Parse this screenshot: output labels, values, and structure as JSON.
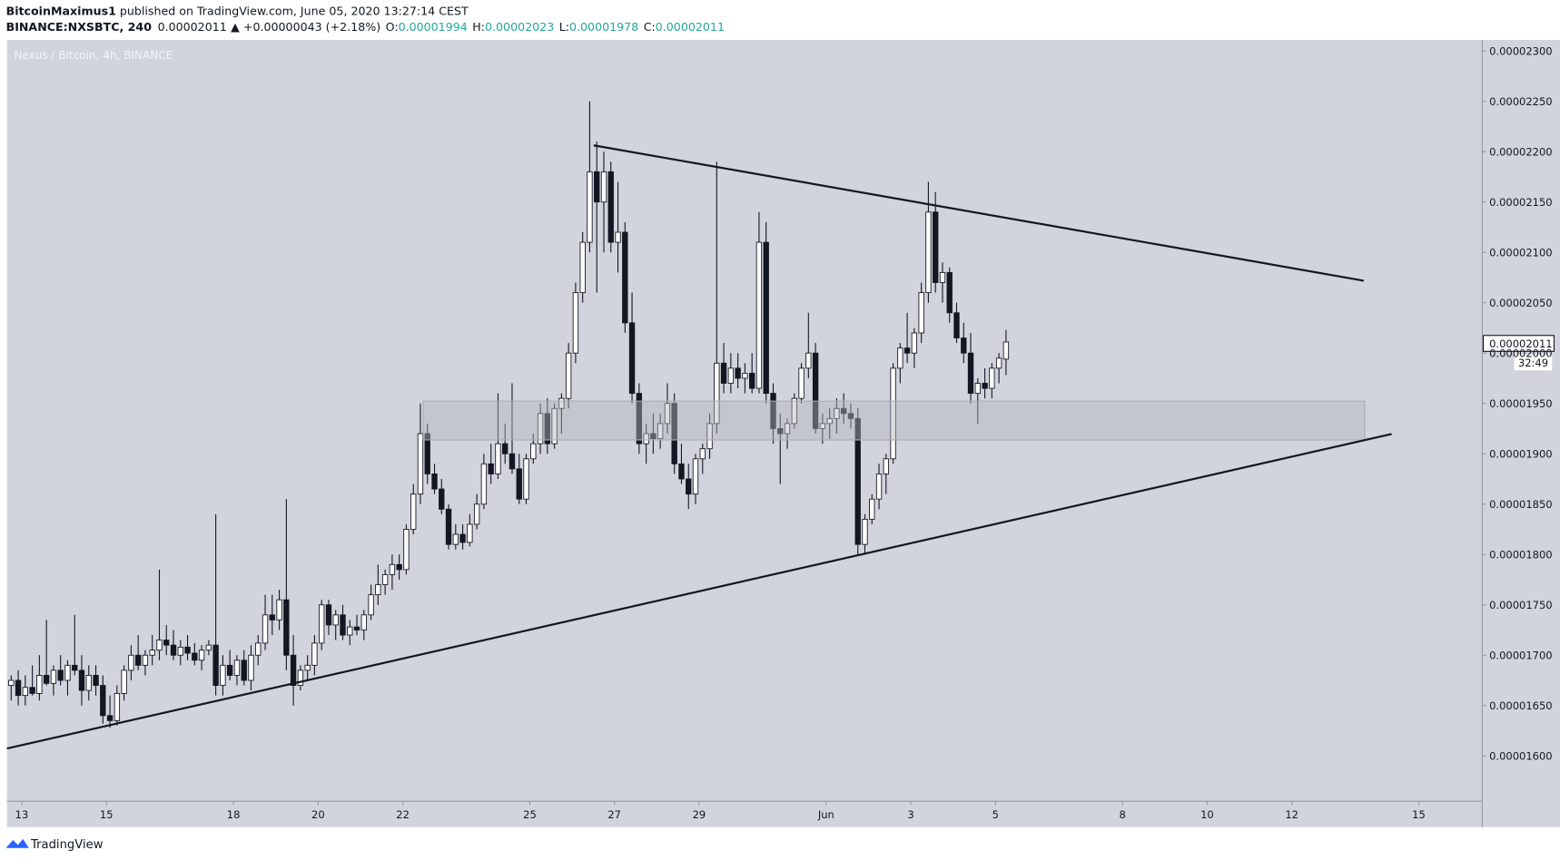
{
  "header": {
    "author": "BitcoinMaximus1",
    "published": " published on TradingView.com, June 05, 2020 13:27:14 CEST",
    "symbol": "BINANCE:NXSBTC, 240",
    "last": "0.00002011",
    "change": "▲ +0.00000043 (+2.18%)",
    "ohlc": [
      {
        "label": "O:",
        "value": "0.00001994"
      },
      {
        "label": "H:",
        "value": "0.00002023"
      },
      {
        "label": "L:",
        "value": "0.00001978"
      },
      {
        "label": "C:",
        "value": "0.00002011"
      }
    ]
  },
  "footer": {
    "brand": "TradingView"
  },
  "chart_data": {
    "type": "candlestick",
    "title": "Nexus / Bitcoin, 4h, BINANCE",
    "last_price_label": "0.00002011",
    "countdown": "32:49",
    "up_color": "#ffffff",
    "down_color": "#131722",
    "wick_color": "#131722",
    "background": "#d1d4dc",
    "grid": false,
    "xlim": [
      12.65,
      47.5
    ],
    "xticks": [
      13,
      15,
      18,
      20,
      22,
      25,
      27,
      29,
      {
        "value": 32,
        "label": "Jun"
      },
      {
        "value": 34,
        "label": "3"
      },
      {
        "value": 36,
        "label": "5"
      },
      {
        "value": 39,
        "label": "8"
      },
      {
        "value": 41,
        "label": "10"
      },
      {
        "value": 43,
        "label": "12"
      },
      {
        "value": 46,
        "label": "15"
      }
    ],
    "ylim": [
      1.555e-05,
      2.311e-05
    ],
    "yticks": [
      {
        "value": 1.6e-05,
        "label": "0.00001600"
      },
      {
        "value": 1.65e-05,
        "label": "0.00001650"
      },
      {
        "value": 1.7e-05,
        "label": "0.00001700"
      },
      {
        "value": 1.75e-05,
        "label": "0.00001750"
      },
      {
        "value": 1.8e-05,
        "label": "0.00001800"
      },
      {
        "value": 1.85e-05,
        "label": "0.00001850"
      },
      {
        "value": 1.9e-05,
        "label": "0.00001900"
      },
      {
        "value": 1.95e-05,
        "label": "0.00001950"
      },
      {
        "value": 2e-05,
        "label": "0.00002000"
      },
      {
        "value": 2.05e-05,
        "label": "0.00002050"
      },
      {
        "value": 2.1e-05,
        "label": "0.00002100"
      },
      {
        "value": 2.15e-05,
        "label": "0.00002150"
      },
      {
        "value": 2.2e-05,
        "label": "0.00002200"
      },
      {
        "value": 2.25e-05,
        "label": "0.00002250"
      },
      {
        "value": 2.3e-05,
        "label": "0.00002300"
      }
    ],
    "x": [
      12.667,
      12.833,
      13,
      13.167,
      13.333,
      13.5,
      13.667,
      13.833,
      14,
      14.167,
      14.333,
      14.5,
      14.667,
      14.833,
      15,
      15.167,
      15.333,
      15.5,
      15.667,
      15.833,
      16,
      16.167,
      16.333,
      16.5,
      16.667,
      16.833,
      17,
      17.167,
      17.333,
      17.5,
      17.667,
      17.833,
      18,
      18.167,
      18.333,
      18.5,
      18.667,
      18.833,
      19,
      19.167,
      19.333,
      19.5,
      19.667,
      19.833,
      20,
      20.167,
      20.333,
      20.5,
      20.667,
      20.833,
      21,
      21.167,
      21.333,
      21.5,
      21.667,
      21.833,
      22,
      22.167,
      22.333,
      22.5,
      22.667,
      22.833,
      23,
      23.167,
      23.333,
      23.5,
      23.667,
      23.833,
      24,
      24.167,
      24.333,
      24.5,
      24.667,
      24.833,
      25,
      25.167,
      25.333,
      25.5,
      25.667,
      25.833,
      26,
      26.167,
      26.333,
      26.5,
      26.667,
      26.833,
      27,
      27.167,
      27.333,
      27.5,
      27.667,
      27.833,
      28,
      28.167,
      28.333,
      28.5,
      28.667,
      28.833,
      29,
      29.167,
      29.333,
      29.5,
      29.667,
      29.833,
      30,
      30.167,
      30.333,
      30.5,
      30.667,
      30.833,
      31,
      31.167,
      31.333,
      31.5,
      31.667,
      31.833,
      32,
      32.167,
      32.333,
      32.5,
      32.667,
      32.833,
      33,
      33.167,
      33.333,
      33.5,
      33.667,
      33.833,
      34,
      34.167,
      34.333,
      34.5,
      34.667,
      34.833,
      35,
      35.167,
      35.333,
      35.5,
      35.667,
      35.833,
      36,
      36.167
    ],
    "candles": [
      [
        1.67e-05,
        1.68e-05,
        1.655e-05,
        1.675e-05
      ],
      [
        1.675e-05,
        1.685e-05,
        1.65e-05,
        1.66e-05
      ],
      [
        1.66e-05,
        1.68e-05,
        1.65e-05,
        1.668e-05
      ],
      [
        1.668e-05,
        1.69e-05,
        1.66e-05,
        1.662e-05
      ],
      [
        1.662e-05,
        1.7e-05,
        1.655e-05,
        1.68e-05
      ],
      [
        1.68e-05,
        1.735e-05,
        1.67e-05,
        1.672e-05
      ],
      [
        1.672e-05,
        1.69e-05,
        1.66e-05,
        1.685e-05
      ],
      [
        1.685e-05,
        1.7e-05,
        1.67e-05,
        1.675e-05
      ],
      [
        1.675e-05,
        1.695e-05,
        1.66e-05,
        1.69e-05
      ],
      [
        1.69e-05,
        1.74e-05,
        1.68e-05,
        1.685e-05
      ],
      [
        1.685e-05,
        1.7e-05,
        1.65e-05,
        1.665e-05
      ],
      [
        1.665e-05,
        1.69e-05,
        1.655e-05,
        1.68e-05
      ],
      [
        1.68e-05,
        1.69e-05,
        1.66e-05,
        1.67e-05
      ],
      [
        1.67e-05,
        1.68e-05,
        1.632e-05,
        1.64e-05
      ],
      [
        1.64e-05,
        1.66e-05,
        1.628e-05,
        1.635e-05
      ],
      [
        1.635e-05,
        1.67e-05,
        1.63e-05,
        1.662e-05
      ],
      [
        1.662e-05,
        1.69e-05,
        1.655e-05,
        1.685e-05
      ],
      [
        1.685e-05,
        1.71e-05,
        1.675e-05,
        1.7e-05
      ],
      [
        1.7e-05,
        1.72e-05,
        1.685e-05,
        1.69e-05
      ],
      [
        1.69e-05,
        1.705e-05,
        1.68e-05,
        1.7e-05
      ],
      [
        1.7e-05,
        1.72e-05,
        1.69e-05,
        1.705e-05
      ],
      [
        1.705e-05,
        1.785e-05,
        1.695e-05,
        1.715e-05
      ],
      [
        1.715e-05,
        1.73e-05,
        1.7e-05,
        1.71e-05
      ],
      [
        1.71e-05,
        1.725e-05,
        1.695e-05,
        1.7e-05
      ],
      [
        1.7e-05,
        1.715e-05,
        1.69e-05,
        1.708e-05
      ],
      [
        1.708e-05,
        1.72e-05,
        1.695e-05,
        1.702e-05
      ],
      [
        1.702e-05,
        1.712e-05,
        1.69e-05,
        1.695e-05
      ],
      [
        1.695e-05,
        1.71e-05,
        1.685e-05,
        1.705e-05
      ],
      [
        1.705e-05,
        1.715e-05,
        1.7e-05,
        1.71e-05
      ],
      [
        1.71e-05,
        1.84e-05,
        1.66e-05,
        1.67e-05
      ],
      [
        1.67e-05,
        1.7e-05,
        1.66e-05,
        1.69e-05
      ],
      [
        1.69e-05,
        1.705e-05,
        1.675e-05,
        1.68e-05
      ],
      [
        1.68e-05,
        1.7e-05,
        1.67e-05,
        1.695e-05
      ],
      [
        1.695e-05,
        1.705e-05,
        1.67e-05,
        1.675e-05
      ],
      [
        1.675e-05,
        1.71e-05,
        1.665e-05,
        1.7e-05
      ],
      [
        1.7e-05,
        1.72e-05,
        1.69e-05,
        1.712e-05
      ],
      [
        1.712e-05,
        1.76e-05,
        1.705e-05,
        1.74e-05
      ],
      [
        1.74e-05,
        1.76e-05,
        1.72e-05,
        1.735e-05
      ],
      [
        1.735e-05,
        1.765e-05,
        1.725e-05,
        1.755e-05
      ],
      [
        1.755e-05,
        1.855e-05,
        1.685e-05,
        1.7e-05
      ],
      [
        1.7e-05,
        1.72e-05,
        1.65e-05,
        1.67e-05
      ],
      [
        1.67e-05,
        1.69e-05,
        1.665e-05,
        1.685e-05
      ],
      [
        1.685e-05,
        1.7e-05,
        1.675e-05,
        1.69e-05
      ],
      [
        1.69e-05,
        1.72e-05,
        1.68e-05,
        1.712e-05
      ],
      [
        1.712e-05,
        1.755e-05,
        1.705e-05,
        1.75e-05
      ],
      [
        1.75e-05,
        1.755e-05,
        1.72e-05,
        1.73e-05
      ],
      [
        1.73e-05,
        1.745e-05,
        1.715e-05,
        1.74e-05
      ],
      [
        1.74e-05,
        1.75e-05,
        1.715e-05,
        1.72e-05
      ],
      [
        1.72e-05,
        1.735e-05,
        1.71e-05,
        1.728e-05
      ],
      [
        1.728e-05,
        1.74e-05,
        1.72e-05,
        1.725e-05
      ],
      [
        1.725e-05,
        1.745e-05,
        1.715e-05,
        1.74e-05
      ],
      [
        1.74e-05,
        1.77e-05,
        1.735e-05,
        1.76e-05
      ],
      [
        1.76e-05,
        1.79e-05,
        1.75e-05,
        1.77e-05
      ],
      [
        1.77e-05,
        1.785e-05,
        1.76e-05,
        1.78e-05
      ],
      [
        1.78e-05,
        1.8e-05,
        1.765e-05,
        1.79e-05
      ],
      [
        1.79e-05,
        1.8e-05,
        1.775e-05,
        1.785e-05
      ],
      [
        1.785e-05,
        1.83e-05,
        1.78e-05,
        1.825e-05
      ],
      [
        1.825e-05,
        1.87e-05,
        1.82e-05,
        1.86e-05
      ],
      [
        1.86e-05,
        1.95e-05,
        1.85e-05,
        1.92e-05
      ],
      [
        1.92e-05,
        1.93e-05,
        1.87e-05,
        1.88e-05
      ],
      [
        1.88e-05,
        1.89e-05,
        1.86e-05,
        1.865e-05
      ],
      [
        1.865e-05,
        1.875e-05,
        1.84e-05,
        1.845e-05
      ],
      [
        1.845e-05,
        1.85e-05,
        1.805e-05,
        1.81e-05
      ],
      [
        1.81e-05,
        1.83e-05,
        1.805e-05,
        1.82e-05
      ],
      [
        1.82e-05,
        1.83e-05,
        1.805e-05,
        1.812e-05
      ],
      [
        1.812e-05,
        1.84e-05,
        1.808e-05,
        1.83e-05
      ],
      [
        1.83e-05,
        1.86e-05,
        1.825e-05,
        1.85e-05
      ],
      [
        1.85e-05,
        1.9e-05,
        1.845e-05,
        1.89e-05
      ],
      [
        1.89e-05,
        1.91e-05,
        1.87e-05,
        1.88e-05
      ],
      [
        1.88e-05,
        1.96e-05,
        1.875e-05,
        1.91e-05
      ],
      [
        1.91e-05,
        1.93e-05,
        1.89e-05,
        1.9e-05
      ],
      [
        1.9e-05,
        1.97e-05,
        1.88e-05,
        1.885e-05
      ],
      [
        1.885e-05,
        1.9e-05,
        1.85e-05,
        1.855e-05
      ],
      [
        1.855e-05,
        1.9e-05,
        1.85e-05,
        1.895e-05
      ],
      [
        1.895e-05,
        1.92e-05,
        1.89e-05,
        1.91e-05
      ],
      [
        1.91e-05,
        1.95e-05,
        1.9e-05,
        1.94e-05
      ],
      [
        1.94e-05,
        1.955e-05,
        1.9e-05,
        1.91e-05
      ],
      [
        1.91e-05,
        1.95e-05,
        1.905e-05,
        1.945e-05
      ],
      [
        1.945e-05,
        1.96e-05,
        1.92e-05,
        1.955e-05
      ],
      [
        1.955e-05,
        2.01e-05,
        1.945e-05,
        2e-05
      ],
      [
        2e-05,
        2.07e-05,
        1.99e-05,
        2.06e-05
      ],
      [
        2.06e-05,
        2.12e-05,
        2.05e-05,
        2.11e-05
      ],
      [
        2.11e-05,
        2.25e-05,
        2.1e-05,
        2.18e-05
      ],
      [
        2.18e-05,
        2.21e-05,
        2.06e-05,
        2.15e-05
      ],
      [
        2.15e-05,
        2.2e-05,
        2.1e-05,
        2.18e-05
      ],
      [
        2.18e-05,
        2.19e-05,
        2.1e-05,
        2.11e-05
      ],
      [
        2.11e-05,
        2.17e-05,
        2.08e-05,
        2.12e-05
      ],
      [
        2.12e-05,
        2.13e-05,
        2.02e-05,
        2.03e-05
      ],
      [
        2.03e-05,
        2.06e-05,
        1.95e-05,
        1.96e-05
      ],
      [
        1.96e-05,
        1.97e-05,
        1.9e-05,
        1.91e-05
      ],
      [
        1.91e-05,
        1.93e-05,
        1.89e-05,
        1.92e-05
      ],
      [
        1.92e-05,
        1.94e-05,
        1.9e-05,
        1.915e-05
      ],
      [
        1.915e-05,
        1.94e-05,
        1.905e-05,
        1.93e-05
      ],
      [
        1.93e-05,
        1.97e-05,
        1.92e-05,
        1.95e-05
      ],
      [
        1.95e-05,
        1.96e-05,
        1.88e-05,
        1.89e-05
      ],
      [
        1.89e-05,
        1.91e-05,
        1.87e-05,
        1.875e-05
      ],
      [
        1.875e-05,
        1.89e-05,
        1.845e-05,
        1.86e-05
      ],
      [
        1.86e-05,
        1.9e-05,
        1.85e-05,
        1.895e-05
      ],
      [
        1.895e-05,
        1.91e-05,
        1.88e-05,
        1.905e-05
      ],
      [
        1.905e-05,
        1.94e-05,
        1.895e-05,
        1.93e-05
      ],
      [
        1.93e-05,
        2.19e-05,
        1.92e-05,
        1.99e-05
      ],
      [
        1.99e-05,
        2.01e-05,
        1.96e-05,
        1.97e-05
      ],
      [
        1.97e-05,
        2e-05,
        1.96e-05,
        1.985e-05
      ],
      [
        1.985e-05,
        2e-05,
        1.965e-05,
        1.975e-05
      ],
      [
        1.975e-05,
        1.99e-05,
        1.96e-05,
        1.98e-05
      ],
      [
        1.98e-05,
        2e-05,
        1.96e-05,
        1.965e-05
      ],
      [
        1.965e-05,
        2.14e-05,
        1.96e-05,
        2.11e-05
      ],
      [
        2.11e-05,
        2.13e-05,
        1.95e-05,
        1.96e-05
      ],
      [
        1.96e-05,
        1.97e-05,
        1.91e-05,
        1.925e-05
      ],
      [
        1.925e-05,
        1.94e-05,
        1.87e-05,
        1.92e-05
      ],
      [
        1.92e-05,
        1.935e-05,
        1.905e-05,
        1.93e-05
      ],
      [
        1.93e-05,
        1.96e-05,
        1.925e-05,
        1.955e-05
      ],
      [
        1.955e-05,
        1.99e-05,
        1.95e-05,
        1.985e-05
      ],
      [
        1.985e-05,
        2.04e-05,
        1.975e-05,
        2e-05
      ],
      [
        2e-05,
        2.01e-05,
        1.92e-05,
        1.925e-05
      ],
      [
        1.925e-05,
        1.94e-05,
        1.91e-05,
        1.93e-05
      ],
      [
        1.93e-05,
        1.945e-05,
        1.915e-05,
        1.935e-05
      ],
      [
        1.935e-05,
        1.955e-05,
        1.92e-05,
        1.945e-05
      ],
      [
        1.945e-05,
        1.96e-05,
        1.93e-05,
        1.94e-05
      ],
      [
        1.94e-05,
        1.95e-05,
        1.925e-05,
        1.935e-05
      ],
      [
        1.935e-05,
        1.945e-05,
        1.8e-05,
        1.81e-05
      ],
      [
        1.81e-05,
        1.84e-05,
        1.8e-05,
        1.835e-05
      ],
      [
        1.835e-05,
        1.86e-05,
        1.83e-05,
        1.855e-05
      ],
      [
        1.855e-05,
        1.89e-05,
        1.845e-05,
        1.88e-05
      ],
      [
        1.88e-05,
        1.9e-05,
        1.86e-05,
        1.895e-05
      ],
      [
        1.895e-05,
        1.99e-05,
        1.89e-05,
        1.985e-05
      ],
      [
        1.985e-05,
        2.01e-05,
        1.97e-05,
        2.005e-05
      ],
      [
        2.005e-05,
        2.04e-05,
        1.99e-05,
        2e-05
      ],
      [
        2e-05,
        2.025e-05,
        1.985e-05,
        2.02e-05
      ],
      [
        2.02e-05,
        2.07e-05,
        2.01e-05,
        2.06e-05
      ],
      [
        2.06e-05,
        2.17e-05,
        2.05e-05,
        2.14e-05
      ],
      [
        2.14e-05,
        2.16e-05,
        2.06e-05,
        2.07e-05
      ],
      [
        2.07e-05,
        2.09e-05,
        2.05e-05,
        2.08e-05
      ],
      [
        2.08e-05,
        2.085e-05,
        2.03e-05,
        2.04e-05
      ],
      [
        2.04e-05,
        2.05e-05,
        2.01e-05,
        2.015e-05
      ],
      [
        2.015e-05,
        2.03e-05,
        1.99e-05,
        2e-05
      ],
      [
        2e-05,
        2.02e-05,
        1.95e-05,
        1.96e-05
      ],
      [
        1.96e-05,
        1.975e-05,
        1.93e-05,
        1.97e-05
      ],
      [
        1.97e-05,
        1.985e-05,
        1.955e-05,
        1.965e-05
      ],
      [
        1.965e-05,
        1.99e-05,
        1.955e-05,
        1.985e-05
      ],
      [
        1.985e-05,
        2e-05,
        1.97e-05,
        1.995e-05
      ],
      [
        1.994e-05,
        2.023e-05,
        1.978e-05,
        2.011e-05
      ]
    ]
  }
}
